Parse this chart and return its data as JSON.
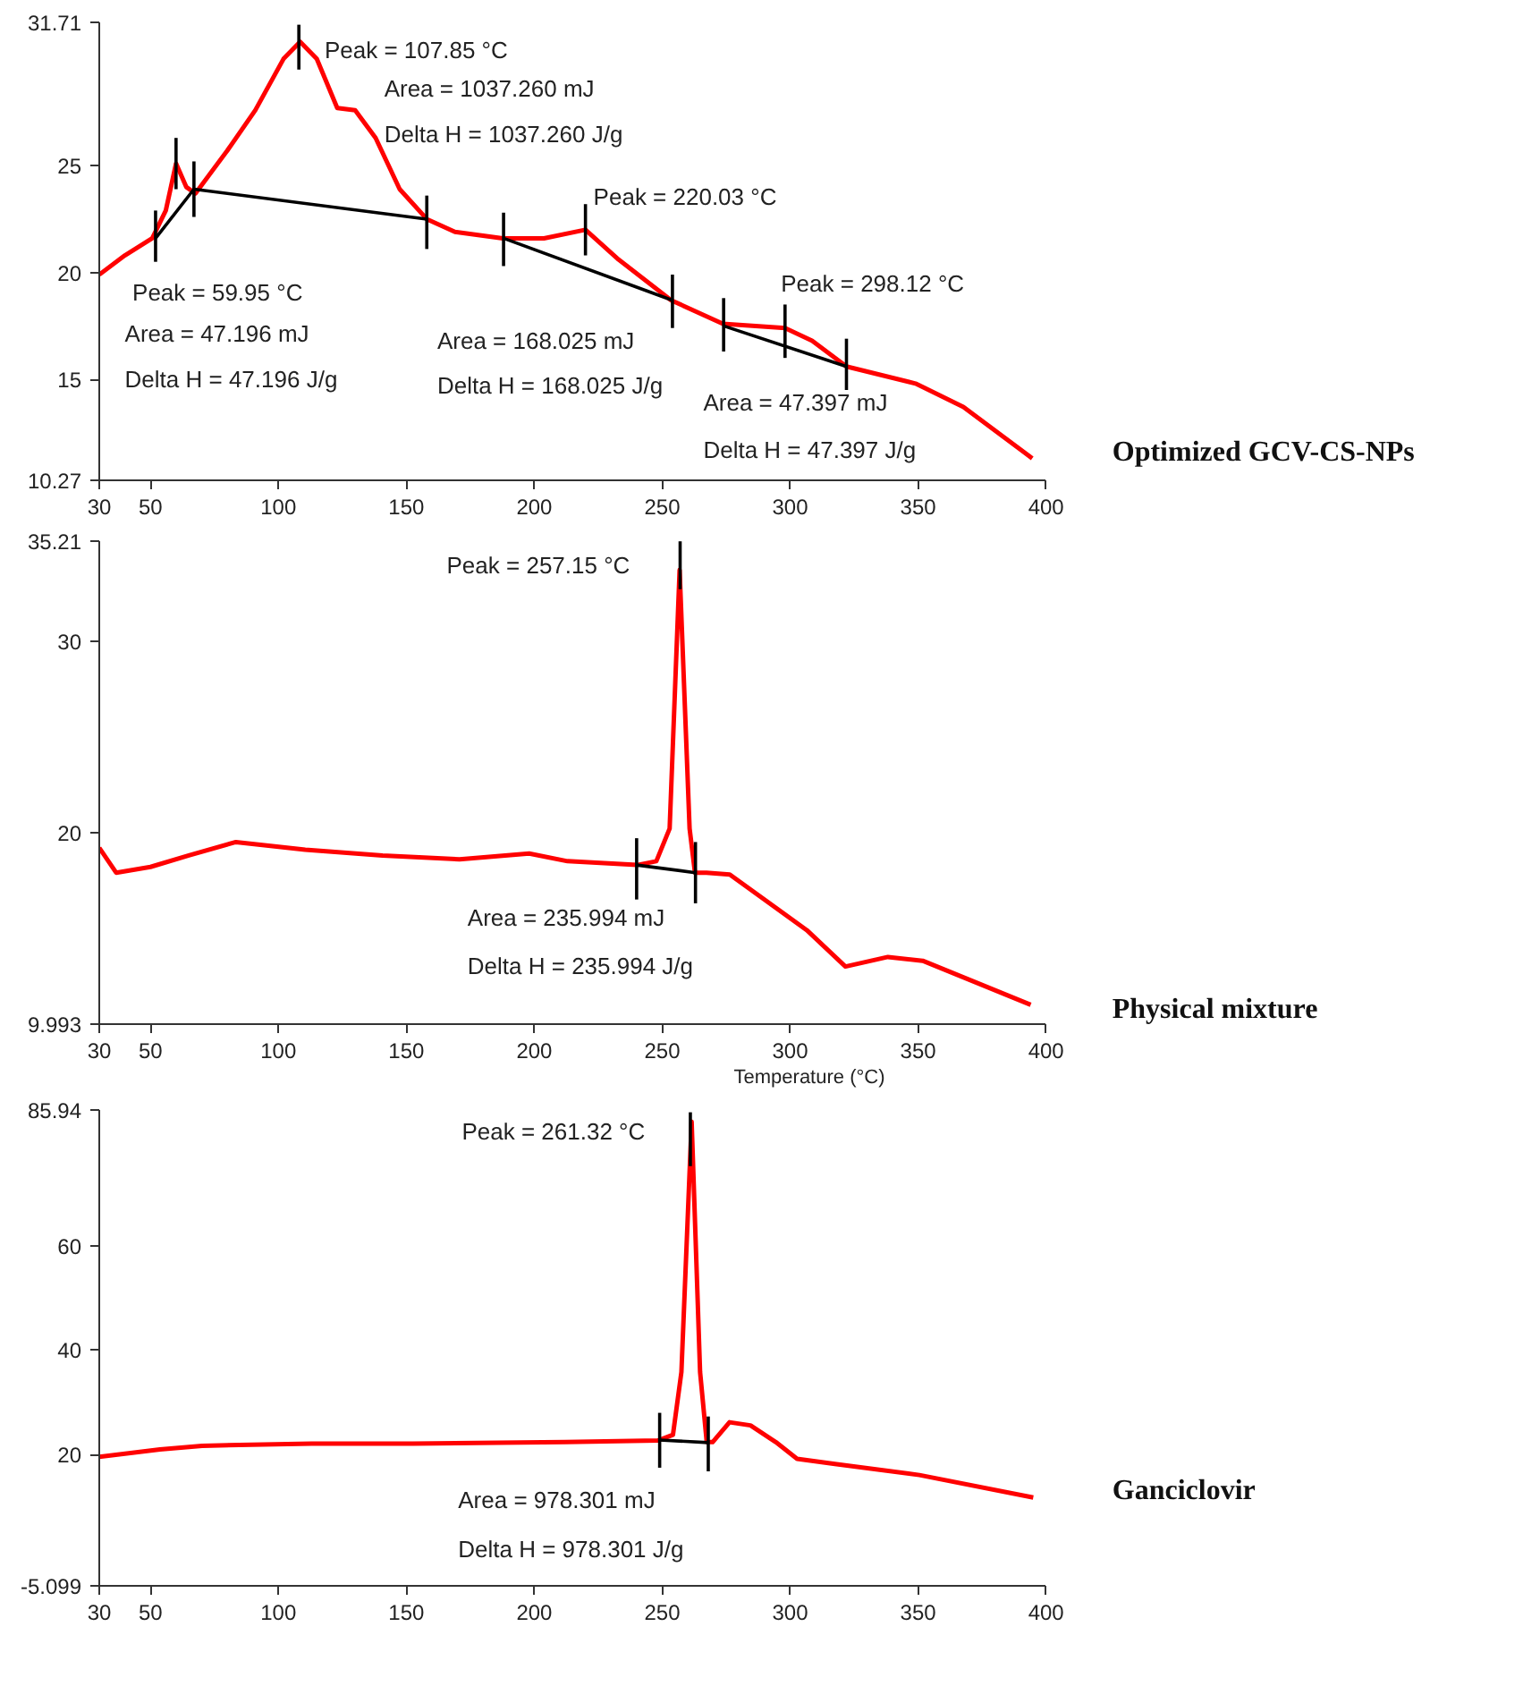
{
  "chart_data": [
    {
      "type": "line",
      "xlim": [
        30,
        400
      ],
      "xticks": [
        30,
        50,
        100,
        150,
        200,
        250,
        300,
        350,
        400
      ],
      "ylim": [
        10.27,
        31.71
      ],
      "yticks": [
        10.27,
        15,
        20,
        25,
        31.71
      ],
      "grid": false,
      "series": [
        {
          "color": "#ff0000",
          "x": [
            30,
            40,
            50.7,
            56,
            60,
            64,
            67.6,
            80,
            91,
            102,
            108.5,
            115,
            123,
            130,
            138,
            147.4,
            158,
            169,
            187.7,
            203.8,
            220,
            233,
            253.5,
            273.7,
            298,
            308.6,
            322,
            349,
            367.7,
            394.6
          ],
          "values": [
            19.9,
            20.8,
            21.6,
            22.9,
            25.1,
            24.0,
            23.7,
            25.7,
            27.6,
            30.0,
            30.8,
            30.0,
            27.7,
            27.6,
            26.3,
            23.9,
            22.5,
            21.9,
            21.6,
            21.6,
            22.0,
            20.6,
            18.7,
            17.6,
            17.4,
            16.8,
            15.6,
            14.8,
            13.7,
            11.3
          ]
        },
        {
          "color": "#000000",
          "x": [
            52,
            67,
            158
          ],
          "values": [
            21.6,
            23.9,
            22.5
          ]
        },
        {
          "color": "#000000",
          "x": [
            188,
            254
          ],
          "values": [
            21.6,
            18.7
          ]
        },
        {
          "color": "#000000",
          "x": [
            274,
            322
          ],
          "values": [
            17.5,
            15.6
          ]
        },
        {
          "color": "#000000",
          "x": [
            52,
            52
          ],
          "values": [
            22.9,
            20.5
          ]
        },
        {
          "color": "#000000",
          "x": [
            60,
            60
          ],
          "values": [
            26.3,
            23.9
          ]
        },
        {
          "color": "#000000",
          "x": [
            67,
            67
          ],
          "values": [
            25.2,
            22.6
          ]
        },
        {
          "color": "#000000",
          "x": [
            108,
            108
          ],
          "values": [
            31.6,
            29.5
          ]
        },
        {
          "color": "#000000",
          "x": [
            158,
            158
          ],
          "values": [
            23.6,
            21.1
          ]
        },
        {
          "color": "#000000",
          "x": [
            188,
            188
          ],
          "values": [
            22.8,
            20.3
          ]
        },
        {
          "color": "#000000",
          "x": [
            220,
            220
          ],
          "values": [
            23.2,
            20.8
          ]
        },
        {
          "color": "#000000",
          "x": [
            254,
            254
          ],
          "values": [
            19.9,
            17.4
          ]
        },
        {
          "color": "#000000",
          "x": [
            274,
            274
          ],
          "values": [
            18.8,
            16.3
          ]
        },
        {
          "color": "#000000",
          "x": [
            298,
            298
          ],
          "values": [
            18.5,
            16.0
          ]
        },
        {
          "color": "#000000",
          "x": [
            322,
            322
          ],
          "values": [
            16.9,
            14.5
          ]
        }
      ],
      "annotations": [
        "Peak = 107.85 °C",
        "Area = 1037.260 mJ",
        "Delta H = 1037.260 J/g",
        "Peak = 220.03 °C",
        "Peak = 59.95 °C",
        "Area = 47.196 mJ",
        "Delta H = 47.196 J/g",
        "Area = 168.025 mJ",
        "Delta H = 168.025 J/g",
        "Peak = 298.12 °C",
        "Area = 47.397 mJ",
        "Delta H = 47.397 J/g",
        "Optimized GCV-CS-NPs"
      ]
    },
    {
      "type": "line",
      "xlabel": "Temperature (°C)",
      "xlim": [
        30,
        400
      ],
      "xticks": [
        30,
        50,
        100,
        150,
        200,
        250,
        300,
        350,
        400
      ],
      "ylim": [
        9.993,
        35.21
      ],
      "yticks": [
        9.993,
        20,
        30,
        35.21
      ],
      "grid": false,
      "series": [
        {
          "color": "#ff0000",
          "x": [
            30,
            36.6,
            50,
            65,
            83.4,
            110.5,
            140.7,
            170.8,
            198,
            213,
            240.2,
            247.7,
            252.9,
            256.8,
            260.7,
            262.8,
            267.3,
            276.4,
            306.5,
            321.6,
            338.2,
            351.8,
            394
          ],
          "values": [
            19.2,
            17.9,
            18.2,
            18.8,
            19.5,
            19.1,
            18.8,
            18.6,
            18.9,
            18.5,
            18.3,
            18.5,
            20.2,
            33.7,
            20.2,
            17.9,
            17.9,
            17.8,
            14.9,
            13.0,
            13.5,
            13.3,
            11.0
          ]
        },
        {
          "color": "#000000",
          "x": [
            240,
            263
          ],
          "values": [
            18.3,
            17.9
          ]
        },
        {
          "color": "#000000",
          "x": [
            240,
            240
          ],
          "values": [
            19.7,
            16.5
          ]
        },
        {
          "color": "#000000",
          "x": [
            257,
            257
          ],
          "values": [
            35.2,
            32.7
          ]
        },
        {
          "color": "#000000",
          "x": [
            263,
            263
          ],
          "values": [
            19.5,
            16.3
          ]
        }
      ],
      "annotations": [
        "Peak = 257.15 °C",
        "Area = 235.994 mJ",
        "Delta H = 235.994 J/g",
        "Physical mixture"
      ]
    },
    {
      "type": "line",
      "xlim": [
        30,
        400
      ],
      "xticks": [
        30,
        50,
        100,
        150,
        200,
        250,
        300,
        350,
        400
      ],
      "ylim": [
        -5.099,
        85.94
      ],
      "yticks": [
        -5.099,
        20,
        40,
        60,
        85.94
      ],
      "grid": false,
      "series": [
        {
          "color": "#ff0000",
          "x": [
            30,
            53.7,
            70.2,
            113,
            152.6,
            212,
            248.3,
            254.2,
            257.5,
            261.5,
            264.8,
            267.4,
            269.7,
            276.3,
            284.5,
            294.4,
            302.7,
            317.5,
            350.5,
            395
          ],
          "values": [
            19.6,
            21.0,
            21.7,
            22.1,
            22.1,
            22.4,
            22.7,
            23.8,
            35.8,
            83.7,
            35.8,
            22.4,
            22.4,
            26.2,
            25.6,
            22.4,
            19.2,
            18.2,
            16.1,
            11.8
          ]
        },
        {
          "color": "#000000",
          "x": [
            249,
            268
          ],
          "values": [
            22.8,
            22.3
          ]
        },
        {
          "color": "#000000",
          "x": [
            249,
            249
          ],
          "values": [
            28,
            17.5
          ]
        },
        {
          "color": "#000000",
          "x": [
            261,
            261
          ],
          "values": [
            85.5,
            75.2
          ]
        },
        {
          "color": "#000000",
          "x": [
            268,
            268
          ],
          "values": [
            27.3,
            16.8
          ]
        }
      ],
      "annotations": [
        "Peak = 261.32 °C",
        "Area = 978.301 mJ",
        "Delta H = 978.301 J/g",
        "Ganciclovir"
      ]
    }
  ]
}
